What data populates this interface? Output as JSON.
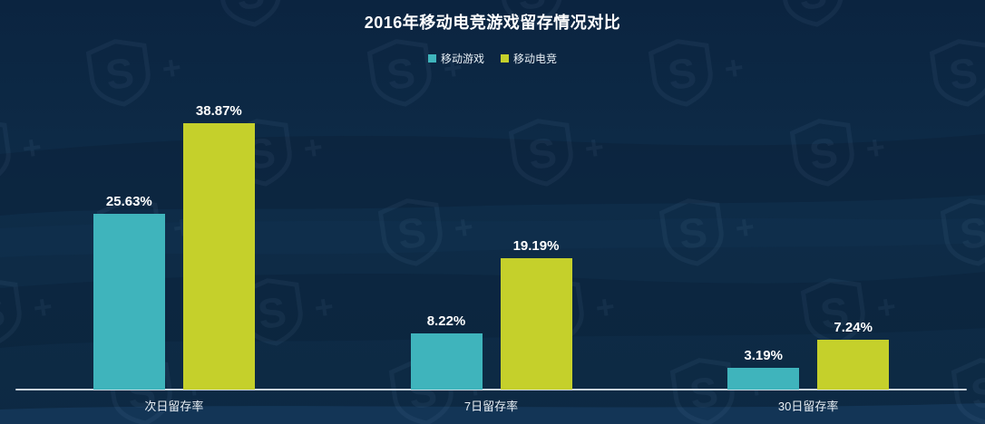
{
  "chart": {
    "background_color": "#0d2a45",
    "axis_color": "#c9d3dc",
    "text_color": "#ffffff",
    "watermark_glyph": "S",
    "watermark_plus": "+"
  },
  "chart_data": {
    "type": "bar",
    "title": "2016年移动电竞游戏留存情况对比",
    "categories": [
      "次日留存率",
      "7日留存率",
      "30日留存率"
    ],
    "series": [
      {
        "name": "移动游戏",
        "color": "#3fb4bc",
        "values": [
          25.63,
          8.22,
          3.19
        ]
      },
      {
        "name": "移动电竞",
        "color": "#c5d02b",
        "values": [
          38.87,
          19.19,
          7.24
        ]
      }
    ],
    "value_labels": [
      [
        "25.63%",
        "8.22%",
        "3.19%"
      ],
      [
        "38.87%",
        "19.19%",
        "7.24%"
      ]
    ],
    "value_suffix": "%",
    "xlabel": "",
    "ylabel": "",
    "ylim": [
      0,
      43.5
    ],
    "grid": false,
    "legend_position": "top"
  }
}
